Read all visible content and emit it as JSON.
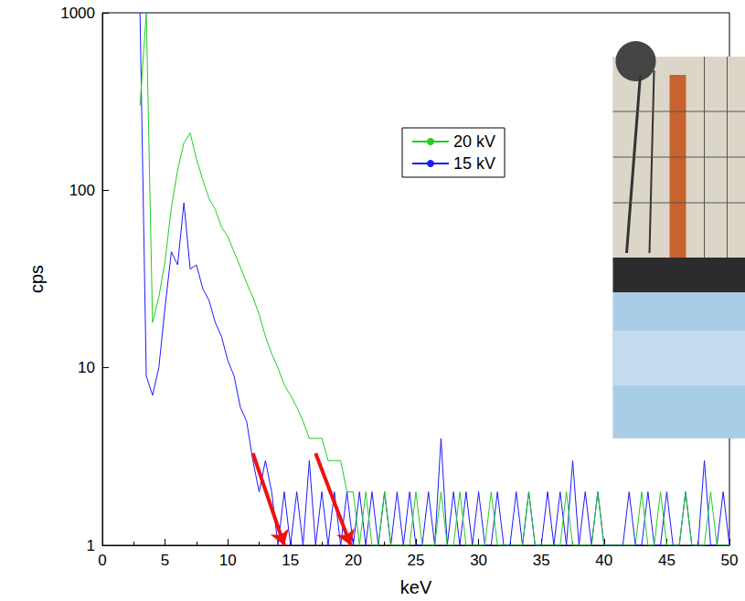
{
  "chart_data": {
    "type": "line",
    "x_label": "keV",
    "y_label": "cps",
    "x": [
      3,
      3.5,
      4,
      4.5,
      5,
      5.5,
      6,
      6.5,
      7,
      7.5,
      8,
      8.5,
      9,
      9.5,
      10,
      10.5,
      11,
      11.5,
      12,
      12.5,
      13,
      13.5,
      14,
      14.5,
      15,
      15.5,
      16,
      16.5,
      17,
      17.5,
      18,
      18.5,
      19,
      19.5,
      20,
      20.5,
      21,
      21.5,
      22,
      22.5,
      23,
      23.5,
      24,
      24.5,
      25,
      25.5,
      26,
      26.5,
      27,
      27.5,
      28,
      28.5,
      29,
      29.5,
      30,
      30.5,
      31,
      31.5,
      32,
      32.5,
      33,
      33.5,
      34,
      34.5,
      35,
      35.5,
      36,
      36.5,
      37,
      37.5,
      38,
      38.5,
      39,
      39.5,
      40,
      40.5,
      41,
      41.5,
      42,
      42.5,
      43,
      43.5,
      44,
      44.5,
      45,
      45.5,
      46,
      46.5,
      47,
      47.5,
      48,
      48.5,
      49,
      49.5,
      50
    ],
    "series": [
      {
        "name": "20 kV",
        "color": "#22cc22",
        "values": [
          300,
          1000,
          18,
          25,
          40,
          80,
          130,
          185,
          210,
          150,
          115,
          90,
          78,
          62,
          55,
          45,
          37,
          30,
          25,
          20,
          15,
          12,
          10,
          8,
          7,
          6,
          5,
          4,
          4,
          4,
          3,
          3,
          3,
          2,
          2,
          1,
          2,
          1,
          1,
          2,
          1,
          1,
          1,
          1,
          2,
          1,
          1,
          1,
          2,
          1,
          1,
          2,
          1,
          1,
          1,
          1,
          2,
          1,
          1,
          1,
          1,
          1,
          2,
          1,
          1,
          1,
          1,
          1,
          2,
          1,
          1,
          1,
          1,
          2,
          1,
          1,
          1,
          1,
          1,
          1,
          2,
          1,
          1,
          2,
          1,
          1,
          1,
          2,
          1,
          1,
          1,
          2,
          1,
          1,
          1
        ]
      },
      {
        "name": "15 kV",
        "color": "#1a1aff",
        "values": [
          1000,
          9,
          7,
          10,
          22,
          45,
          38,
          85,
          36,
          38,
          28,
          24,
          18,
          15,
          11,
          9,
          6,
          5,
          3,
          2,
          3,
          2,
          1,
          2,
          1,
          2,
          1,
          3,
          1,
          2,
          1,
          2,
          1,
          2,
          1,
          2,
          1,
          2,
          1,
          2,
          1,
          2,
          1,
          2,
          1,
          1,
          2,
          1,
          4,
          1,
          2,
          1,
          2,
          1,
          2,
          1,
          1,
          2,
          1,
          1,
          2,
          1,
          2,
          1,
          1,
          2,
          1,
          2,
          1,
          3,
          1,
          2,
          1,
          2,
          1,
          1,
          1,
          1,
          2,
          1,
          1,
          2,
          1,
          1,
          2,
          1,
          1,
          2,
          1,
          1,
          3,
          1,
          1,
          2,
          1
        ]
      }
    ],
    "arrows": [
      {
        "from": [
          12,
          3.3
        ],
        "to": [
          14.5,
          1
        ]
      },
      {
        "from": [
          17,
          3.3
        ],
        "to": [
          19.8,
          1
        ]
      }
    ],
    "xlim": [
      0,
      50
    ],
    "xticks": [
      0,
      5,
      10,
      15,
      20,
      25,
      30,
      35,
      40,
      45,
      50
    ],
    "ylim": [
      1,
      1000
    ],
    "yticks": [
      1,
      10,
      100,
      1000
    ],
    "log": "y",
    "grid": false,
    "legend": "top"
  }
}
